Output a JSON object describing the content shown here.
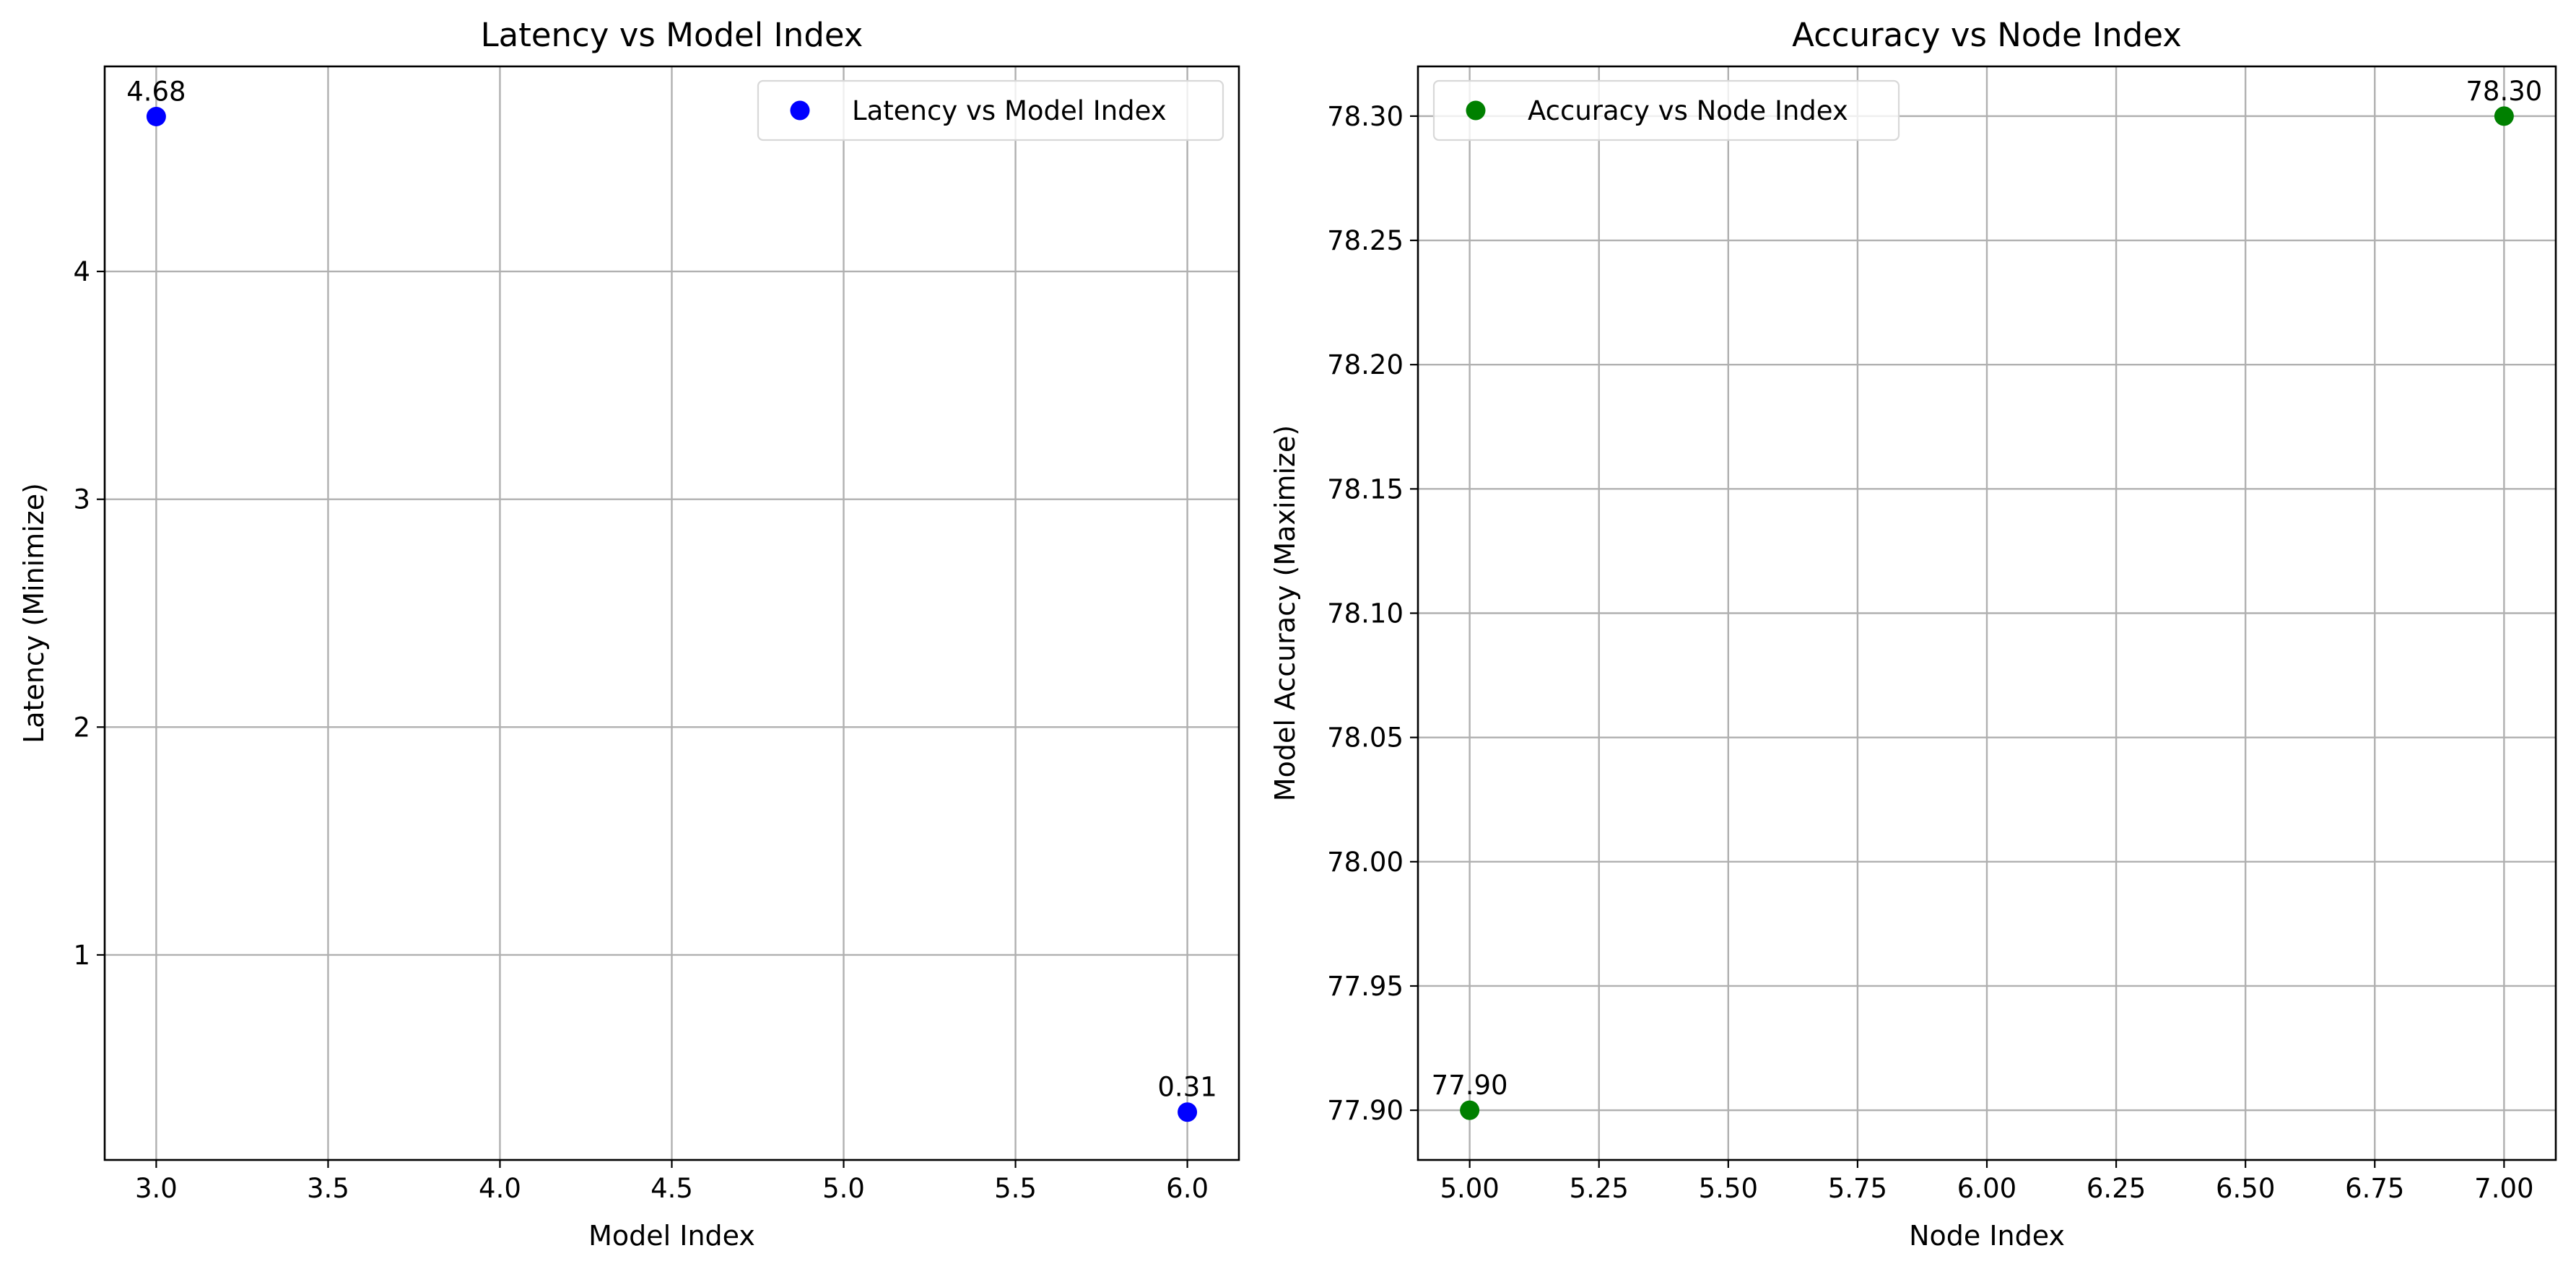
{
  "chart_data": [
    {
      "type": "scatter",
      "title": "Latency vs Model Index",
      "xlabel": "Model Index",
      "ylabel": "Latency (Minimize)",
      "xlim": [
        2.85,
        6.15
      ],
      "ylim": [
        0.1,
        4.9
      ],
      "xticks": [
        3.0,
        3.5,
        4.0,
        4.5,
        5.0,
        5.5,
        6.0
      ],
      "xtick_labels": [
        "3.0",
        "3.5",
        "4.0",
        "4.5",
        "5.0",
        "5.5",
        "6.0"
      ],
      "yticks": [
        1,
        2,
        3,
        4
      ],
      "ytick_labels": [
        "1",
        "2",
        "3",
        "4"
      ],
      "grid": true,
      "legend_position": "top-right",
      "series": [
        {
          "name": "Latency vs Model Index",
          "color": "#0000ff",
          "x": [
            3,
            6
          ],
          "y": [
            4.68,
            0.31
          ],
          "labels": [
            "4.68",
            "0.31"
          ]
        }
      ]
    },
    {
      "type": "scatter",
      "title": "Accuracy vs Node Index",
      "xlabel": "Node Index",
      "ylabel": "Model Accuracy (Maximize)",
      "xlim": [
        4.9,
        7.1
      ],
      "ylim": [
        77.88,
        78.32
      ],
      "xticks": [
        5.0,
        5.25,
        5.5,
        5.75,
        6.0,
        6.25,
        6.5,
        6.75,
        7.0
      ],
      "xtick_labels": [
        "5.00",
        "5.25",
        "5.50",
        "5.75",
        "6.00",
        "6.25",
        "6.50",
        "6.75",
        "7.00"
      ],
      "yticks": [
        77.9,
        77.95,
        78.0,
        78.05,
        78.1,
        78.15,
        78.2,
        78.25,
        78.3
      ],
      "ytick_labels": [
        "77.90",
        "77.95",
        "78.00",
        "78.05",
        "78.10",
        "78.15",
        "78.20",
        "78.25",
        "78.30"
      ],
      "grid": true,
      "legend_position": "top-left",
      "series": [
        {
          "name": "Accuracy vs Node Index",
          "color": "#008000",
          "x": [
            5,
            7
          ],
          "y": [
            77.9,
            78.3
          ],
          "labels": [
            "77.90",
            "78.30"
          ]
        }
      ]
    }
  ]
}
